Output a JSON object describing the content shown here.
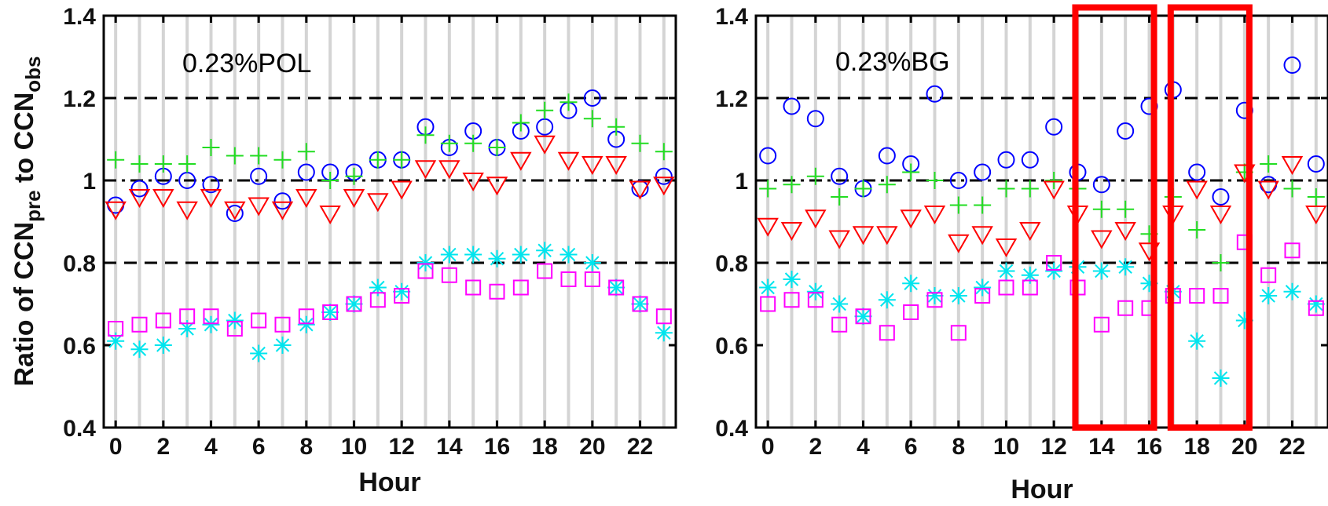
{
  "figure": {
    "ylabel_main": "Ratio of CCN",
    "ylabel_sub1": "pre",
    "ylabel_mid": " to CCN",
    "ylabel_sub2": "obs"
  },
  "chart_data": [
    {
      "type": "scatter",
      "panel": "left",
      "annotation": "0.23%POL",
      "xlabel": "Hour",
      "ylabel": "Ratio of CCNpre to CCNobs",
      "xlim": [
        -0.5,
        23.5
      ],
      "ylim": [
        0.4,
        1.4
      ],
      "xticks": [
        0,
        2,
        4,
        6,
        8,
        10,
        12,
        14,
        16,
        18,
        20,
        22
      ],
      "yticks": [
        0.4,
        0.6,
        0.8,
        1.0,
        1.2,
        1.4
      ],
      "ytick_labels": [
        "0.4",
        "0.6",
        "0.8",
        "1",
        "1.2",
        "1.4"
      ],
      "grid": "vertical light-gray line at every hour",
      "reference_lines": [
        {
          "y": 1.2,
          "style": "dashed"
        },
        {
          "y": 1.0,
          "style": "dash-dot"
        },
        {
          "y": 0.8,
          "style": "dashed"
        }
      ],
      "x": [
        0,
        1,
        2,
        3,
        4,
        5,
        6,
        7,
        8,
        9,
        10,
        11,
        12,
        13,
        14,
        15,
        16,
        17,
        18,
        19,
        20,
        21,
        22,
        23
      ],
      "series": [
        {
          "marker": "circle",
          "color": "#0000ff",
          "values": [
            0.94,
            0.98,
            1.01,
            1.0,
            0.99,
            0.92,
            1.01,
            0.95,
            1.02,
            1.02,
            1.02,
            1.05,
            1.05,
            1.13,
            1.08,
            1.12,
            1.08,
            1.12,
            1.13,
            1.17,
            1.2,
            1.1,
            0.98,
            1.01
          ]
        },
        {
          "marker": "plus",
          "color": "#22dd22",
          "values": [
            1.05,
            1.04,
            1.04,
            1.04,
            1.08,
            1.06,
            1.06,
            1.05,
            1.07,
            1.0,
            1.01,
            1.05,
            1.05,
            1.11,
            1.09,
            1.09,
            1.08,
            1.14,
            1.17,
            1.19,
            1.15,
            1.13,
            1.09,
            1.07
          ]
        },
        {
          "marker": "triangle-down",
          "color": "#ff0000",
          "values": [
            0.93,
            0.96,
            0.96,
            0.93,
            0.96,
            0.93,
            0.94,
            0.93,
            0.96,
            0.92,
            0.96,
            0.95,
            0.98,
            1.03,
            1.03,
            1.0,
            0.99,
            1.05,
            1.09,
            1.05,
            1.04,
            1.04,
            0.98,
            0.99
          ]
        },
        {
          "marker": "asterisk",
          "color": "#00e5ee",
          "values": [
            0.61,
            0.59,
            0.6,
            0.64,
            0.65,
            0.66,
            0.58,
            0.6,
            0.65,
            0.68,
            0.7,
            0.74,
            0.73,
            0.8,
            0.82,
            0.82,
            0.81,
            0.82,
            0.83,
            0.82,
            0.8,
            0.74,
            0.7,
            0.63
          ]
        },
        {
          "marker": "square",
          "color": "#ff00ff",
          "values": [
            0.64,
            0.65,
            0.66,
            0.67,
            0.67,
            0.64,
            0.66,
            0.65,
            0.67,
            0.68,
            0.7,
            0.71,
            0.72,
            0.78,
            0.77,
            0.74,
            0.73,
            0.74,
            0.78,
            0.76,
            0.76,
            0.74,
            0.7,
            0.67
          ]
        }
      ]
    },
    {
      "type": "scatter",
      "panel": "right",
      "annotation": "0.23%BG",
      "xlabel": "Hour",
      "ylabel": "",
      "xlim": [
        -0.5,
        23.5
      ],
      "ylim": [
        0.4,
        1.4
      ],
      "xticks": [
        0,
        2,
        4,
        6,
        8,
        10,
        12,
        14,
        16,
        18,
        20,
        22
      ],
      "yticks": [
        0.4,
        0.6,
        0.8,
        1.0,
        1.2,
        1.4
      ],
      "ytick_labels": [
        "0.4",
        "0.6",
        "0.8",
        "1",
        "1.2",
        "1.4"
      ],
      "grid": "vertical light-gray line at every hour",
      "reference_lines": [
        {
          "y": 1.2,
          "style": "dashed"
        },
        {
          "y": 1.0,
          "style": "dash-dot"
        },
        {
          "y": 0.8,
          "style": "dashed"
        }
      ],
      "highlight_boxes": [
        {
          "x_range": [
            12.9,
            16.2
          ],
          "y_range": [
            0.4,
            1.42
          ],
          "color": "#ff0000"
        },
        {
          "x_range": [
            16.9,
            20.2
          ],
          "y_range": [
            0.4,
            1.42
          ],
          "color": "#ff0000"
        }
      ],
      "x": [
        0,
        1,
        2,
        3,
        4,
        5,
        6,
        7,
        8,
        9,
        10,
        11,
        12,
        13,
        14,
        15,
        16,
        17,
        18,
        19,
        20,
        21,
        22,
        23
      ],
      "series": [
        {
          "marker": "circle",
          "color": "#0000ff",
          "values": [
            1.06,
            1.18,
            1.15,
            1.01,
            0.98,
            1.06,
            1.04,
            1.21,
            1.0,
            1.02,
            1.05,
            1.05,
            1.13,
            1.02,
            0.99,
            1.12,
            1.18,
            1.22,
            1.02,
            0.96,
            1.17,
            0.99,
            1.28,
            1.04
          ]
        },
        {
          "marker": "plus",
          "color": "#22dd22",
          "values": [
            0.98,
            0.99,
            1.01,
            0.96,
            0.98,
            0.99,
            1.02,
            1.0,
            0.94,
            0.94,
            0.98,
            0.98,
            1.0,
            0.98,
            0.93,
            0.93,
            0.87,
            0.96,
            0.88,
            0.8,
            1.02,
            1.04,
            0.98,
            0.96
          ]
        },
        {
          "marker": "triangle-down",
          "color": "#ff0000",
          "values": [
            0.89,
            0.88,
            0.91,
            0.86,
            0.87,
            0.87,
            0.91,
            0.92,
            0.85,
            0.87,
            0.84,
            0.88,
            0.98,
            0.92,
            0.86,
            0.88,
            0.83,
            0.92,
            0.98,
            0.92,
            1.02,
            0.98,
            1.04,
            0.92
          ]
        },
        {
          "marker": "asterisk",
          "color": "#00e5ee",
          "values": [
            0.74,
            0.76,
            0.73,
            0.7,
            0.67,
            0.71,
            0.75,
            0.72,
            0.72,
            0.74,
            0.78,
            0.77,
            0.78,
            0.79,
            0.78,
            0.79,
            0.75,
            0.73,
            0.61,
            0.52,
            0.66,
            0.72,
            0.73,
            0.7
          ]
        },
        {
          "marker": "square",
          "color": "#ff00ff",
          "values": [
            0.7,
            0.71,
            0.71,
            0.65,
            0.67,
            0.63,
            0.68,
            0.71,
            0.63,
            0.72,
            0.74,
            0.74,
            0.8,
            0.74,
            0.65,
            0.69,
            0.69,
            0.72,
            0.72,
            0.72,
            0.85,
            0.77,
            0.83,
            0.69
          ]
        }
      ]
    }
  ]
}
